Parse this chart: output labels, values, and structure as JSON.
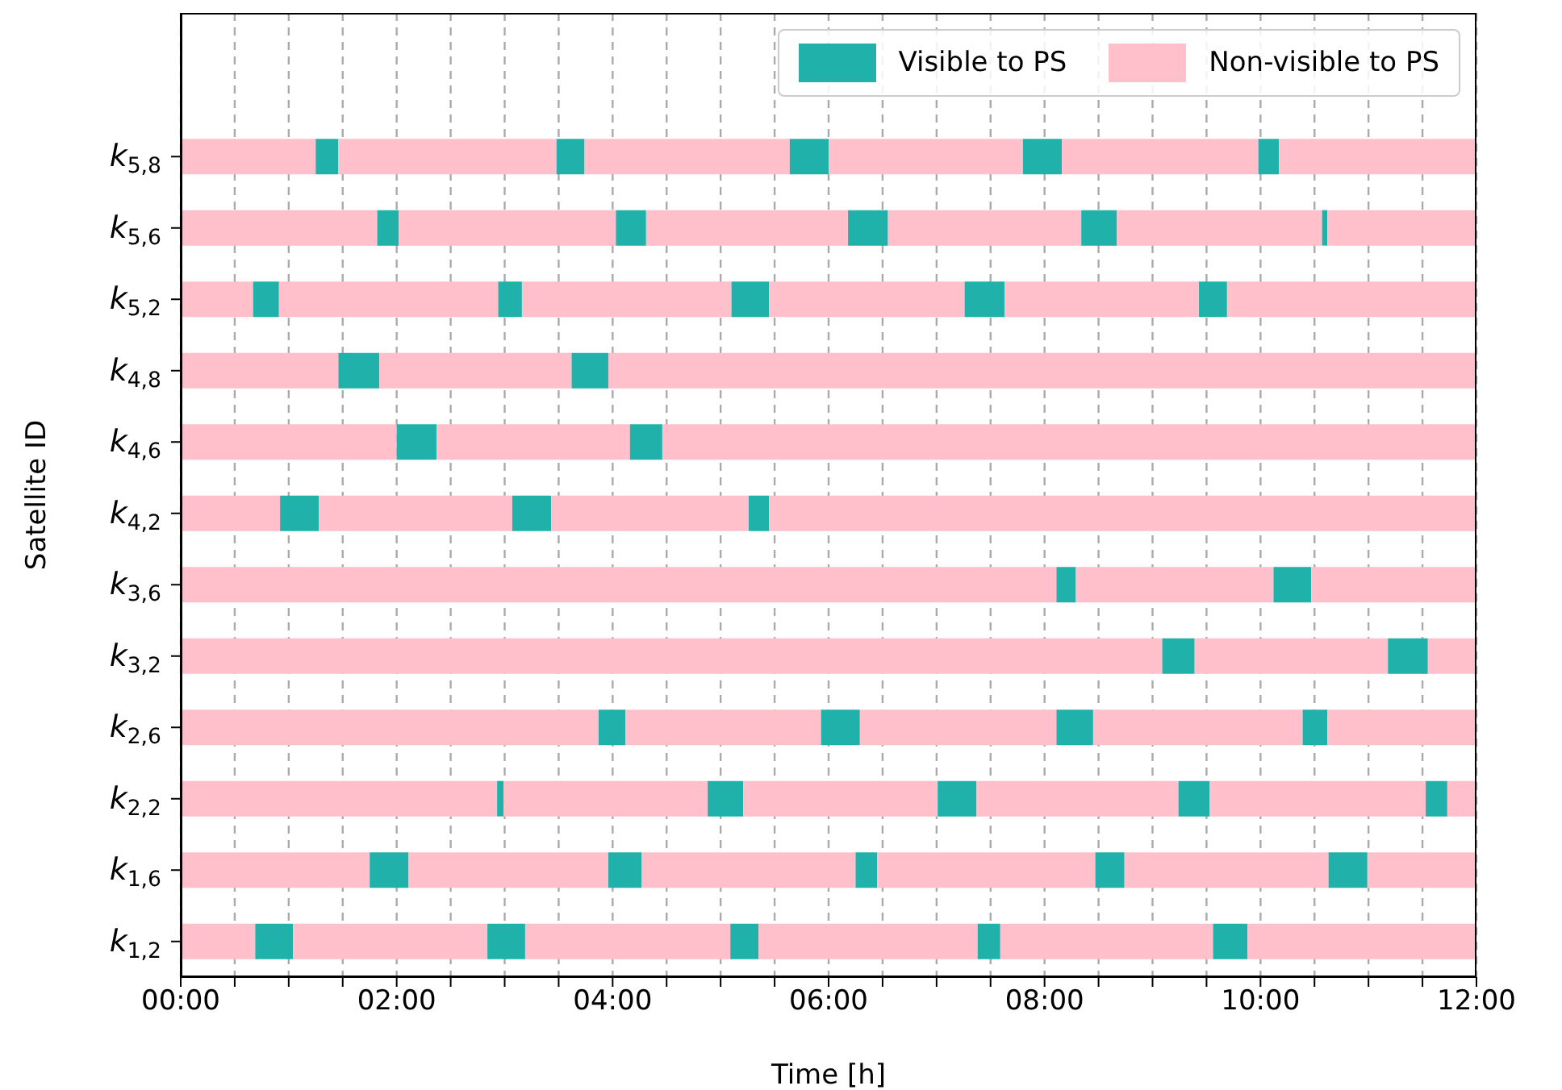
{
  "chart_data": {
    "type": "bar",
    "orientation": "horizontal",
    "stacked": true,
    "xlabel": "Time [h]",
    "ylabel": "Satellite ID",
    "categories": [
      "k$_{5,8}$",
      "k$_{5,6}$",
      "k$_{5,2}$",
      "k$_{4,8}$",
      "k$_{4,6}$",
      "k$_{4,2}$",
      "k$_{3,6}$",
      "k$_{3,2}$",
      "k$_{2,6}$",
      "k$_{2,2}$",
      "k$_{1,6}$",
      "k$_{1,2}$"
    ],
    "xlim": [
      0,
      12
    ],
    "xticks": [
      {
        "value": 0,
        "label": "00:00"
      },
      {
        "value": 0.5,
        "label": null
      },
      {
        "value": 1,
        "label": null
      },
      {
        "value": 1.5,
        "label": null
      },
      {
        "value": 2,
        "label": "02:00"
      },
      {
        "value": 2.5,
        "label": null
      },
      {
        "value": 3,
        "label": null
      },
      {
        "value": 3.5,
        "label": null
      },
      {
        "value": 4,
        "label": "04:00"
      },
      {
        "value": 4.5,
        "label": null
      },
      {
        "value": 5,
        "label": null
      },
      {
        "value": 5.5,
        "label": null
      },
      {
        "value": 6,
        "label": "06:00"
      },
      {
        "value": 6.5,
        "label": null
      },
      {
        "value": 7,
        "label": null
      },
      {
        "value": 7.5,
        "label": null
      },
      {
        "value": 8,
        "label": "08:00"
      },
      {
        "value": 8.5,
        "label": null
      },
      {
        "value": 9,
        "label": null
      },
      {
        "value": 9.5,
        "label": null
      },
      {
        "value": 10,
        "label": "10:00"
      },
      {
        "value": 10.5,
        "label": null
      },
      {
        "value": 11,
        "label": null
      },
      {
        "value": 11.5,
        "label": null
      },
      {
        "value": 12,
        "label": "12:00"
      }
    ],
    "grid": "x",
    "legend": "top right",
    "series": [
      {
        "name": "Non-visible to PS",
        "color": "#ffc0cb",
        "values": [
          1.25,
          1.82,
          0.67,
          1.46,
          2.0,
          0.92,
          8.11,
          9.09,
          3.87,
          2.93,
          1.75,
          0.69
        ]
      },
      {
        "name": "Visible to PS",
        "color": "#20b2aa",
        "values": [
          0.21,
          0.2,
          0.24,
          0.38,
          0.37,
          0.36,
          0.18,
          0.3,
          0.25,
          0.06,
          0.36,
          0.35
        ]
      },
      {
        "color": "#ffc0cb",
        "values": [
          2.02,
          2.01,
          2.03,
          1.78,
          1.79,
          1.79,
          1.83,
          1.79,
          1.81,
          1.89,
          1.85,
          1.8
        ]
      },
      {
        "color": "#20b2aa",
        "values": [
          0.26,
          0.28,
          0.22,
          0.34,
          0.3,
          0.36,
          0.35,
          0.37,
          0.36,
          0.33,
          0.31,
          0.35
        ]
      },
      {
        "color": "#ffc0cb",
        "values": [
          1.9,
          1.87,
          1.94,
          8.04,
          7.54,
          1.83,
          1.53,
          0.45,
          1.82,
          1.8,
          1.98,
          1.9
        ]
      },
      {
        "color": "#20b2aa",
        "values": [
          0.36,
          0.37,
          0.35,
          null,
          null,
          0.19,
          null,
          null,
          0.34,
          0.36,
          0.2,
          0.26
        ]
      },
      {
        "color": "#ffc0cb",
        "values": [
          1.8,
          1.79,
          1.81,
          null,
          null,
          6.55,
          null,
          null,
          1.94,
          1.87,
          2.02,
          2.03
        ]
      },
      {
        "color": "#20b2aa",
        "values": [
          0.36,
          0.33,
          0.37,
          null,
          null,
          null,
          null,
          null,
          0.23,
          0.29,
          0.27,
          0.21
        ]
      },
      {
        "color": "#ffc0cb",
        "values": [
          1.82,
          1.9,
          1.8,
          null,
          null,
          null,
          null,
          null,
          1.38,
          2.0,
          1.89,
          1.97
        ]
      },
      {
        "color": "#20b2aa",
        "values": [
          0.19,
          0.05,
          0.26,
          null,
          null,
          null,
          null,
          null,
          null,
          0.2,
          0.36,
          0.32
        ]
      },
      {
        "color": "#ffc0cb",
        "values": [
          1.83,
          1.38,
          2.31,
          null,
          null,
          null,
          null,
          null,
          null,
          0.27,
          1.01,
          2.12
        ]
      }
    ]
  }
}
